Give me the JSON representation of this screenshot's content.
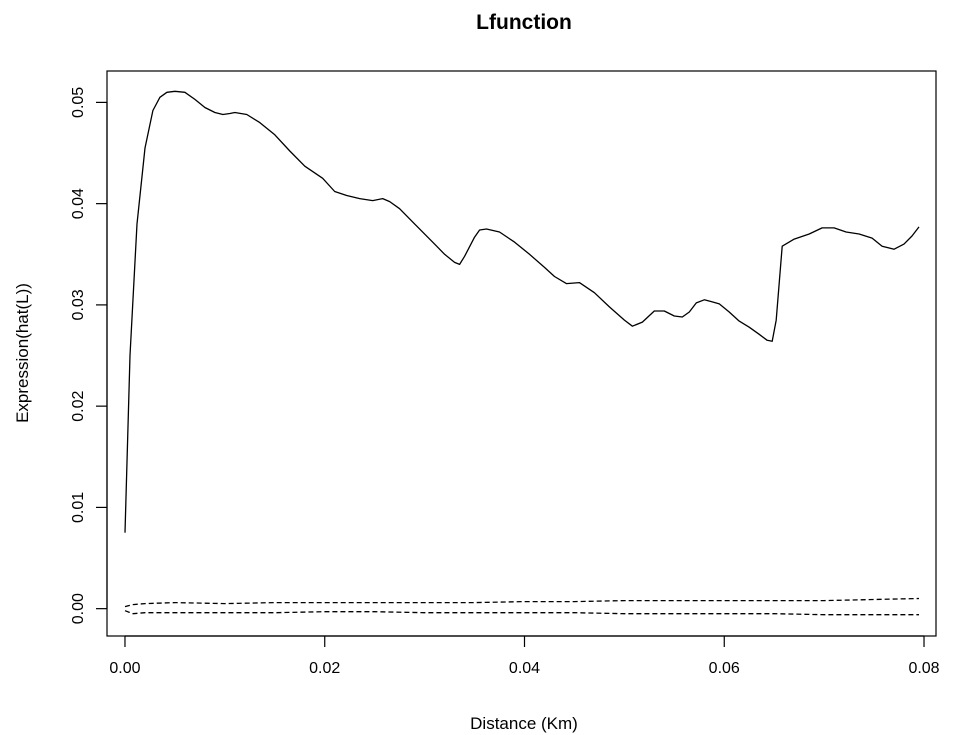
{
  "chart_data": {
    "type": "line",
    "title": "Lfunction",
    "xlabel": "Distance (Km)",
    "ylabel": "Expression(hat(L))",
    "xlim": [
      -0.0018,
      0.0812
    ],
    "ylim": [
      -0.0027,
      0.0531
    ],
    "x_ticks": [
      0.0,
      0.02,
      0.04,
      0.06,
      0.08
    ],
    "x_tick_labels": [
      "0.00",
      "0.02",
      "0.04",
      "0.06",
      "0.08"
    ],
    "y_ticks": [
      0.0,
      0.01,
      0.02,
      0.03,
      0.04,
      0.05
    ],
    "y_tick_labels": [
      "0.00",
      "0.01",
      "0.02",
      "0.03",
      "0.04",
      "0.05"
    ],
    "grid": false,
    "legend": "none",
    "series": [
      {
        "style": "solid",
        "color": "#000000",
        "x": [
          0.0,
          0.0005,
          0.0012,
          0.002,
          0.0028,
          0.0035,
          0.0042,
          0.005,
          0.006,
          0.007,
          0.008,
          0.009,
          0.0098,
          0.0105,
          0.011,
          0.0122,
          0.0135,
          0.015,
          0.0165,
          0.018,
          0.0198,
          0.021,
          0.0222,
          0.0235,
          0.0248,
          0.0258,
          0.0265,
          0.0275,
          0.029,
          0.031,
          0.032,
          0.033,
          0.0335,
          0.034,
          0.035,
          0.0355,
          0.0362,
          0.0375,
          0.039,
          0.0405,
          0.042,
          0.043,
          0.0442,
          0.0455,
          0.047,
          0.0485,
          0.05,
          0.0508,
          0.0518,
          0.053,
          0.054,
          0.055,
          0.0558,
          0.0565,
          0.0572,
          0.058,
          0.0588,
          0.0595,
          0.0605,
          0.0615,
          0.0625,
          0.0635,
          0.0643,
          0.0648,
          0.0652,
          0.0658,
          0.067,
          0.0685,
          0.0698,
          0.071,
          0.0722,
          0.0735,
          0.0748,
          0.0758,
          0.077,
          0.078,
          0.0788,
          0.0795
        ],
        "y": [
          0.0075,
          0.025,
          0.038,
          0.0455,
          0.0492,
          0.0505,
          0.051,
          0.0511,
          0.051,
          0.0503,
          0.0495,
          0.049,
          0.0488,
          0.0489,
          0.049,
          0.0488,
          0.048,
          0.0468,
          0.0452,
          0.0437,
          0.0425,
          0.0412,
          0.0408,
          0.0405,
          0.0403,
          0.0405,
          0.0402,
          0.0395,
          0.038,
          0.036,
          0.035,
          0.0342,
          0.034,
          0.0348,
          0.0367,
          0.0374,
          0.0375,
          0.0372,
          0.0362,
          0.035,
          0.0337,
          0.0328,
          0.0321,
          0.0322,
          0.0312,
          0.0298,
          0.0285,
          0.0279,
          0.0283,
          0.0294,
          0.0294,
          0.0289,
          0.0288,
          0.0293,
          0.0302,
          0.0305,
          0.0303,
          0.0301,
          0.0293,
          0.0284,
          0.0278,
          0.0271,
          0.0265,
          0.0264,
          0.0285,
          0.0358,
          0.0365,
          0.037,
          0.0376,
          0.0376,
          0.0372,
          0.037,
          0.0366,
          0.0358,
          0.0355,
          0.036,
          0.0368,
          0.0377
        ]
      },
      {
        "style": "dashed",
        "color": "#000000",
        "x": [
          0.0,
          0.0008,
          0.002,
          0.005,
          0.01,
          0.015,
          0.02,
          0.025,
          0.03,
          0.035,
          0.04,
          0.045,
          0.05,
          0.055,
          0.06,
          0.065,
          0.07,
          0.075,
          0.0795
        ],
        "y": [
          0.0002,
          0.0004,
          0.0005,
          0.0006,
          0.0005,
          0.0006,
          0.0006,
          0.0006,
          0.0006,
          0.0006,
          0.0007,
          0.0007,
          0.0008,
          0.0008,
          0.0008,
          0.0008,
          0.0008,
          0.0009,
          0.001
        ]
      },
      {
        "style": "dashed",
        "color": "#000000",
        "x": [
          0.0,
          0.0008,
          0.002,
          0.005,
          0.01,
          0.015,
          0.02,
          0.025,
          0.03,
          0.035,
          0.04,
          0.045,
          0.05,
          0.055,
          0.06,
          0.065,
          0.07,
          0.075,
          0.0795
        ],
        "y": [
          -0.0002,
          -0.0005,
          -0.0004,
          -0.0004,
          -0.0004,
          -0.0004,
          -0.0003,
          -0.0003,
          -0.0004,
          -0.0004,
          -0.0004,
          -0.0004,
          -0.0005,
          -0.0005,
          -0.0005,
          -0.0005,
          -0.0006,
          -0.0006,
          -0.0006
        ]
      }
    ]
  }
}
